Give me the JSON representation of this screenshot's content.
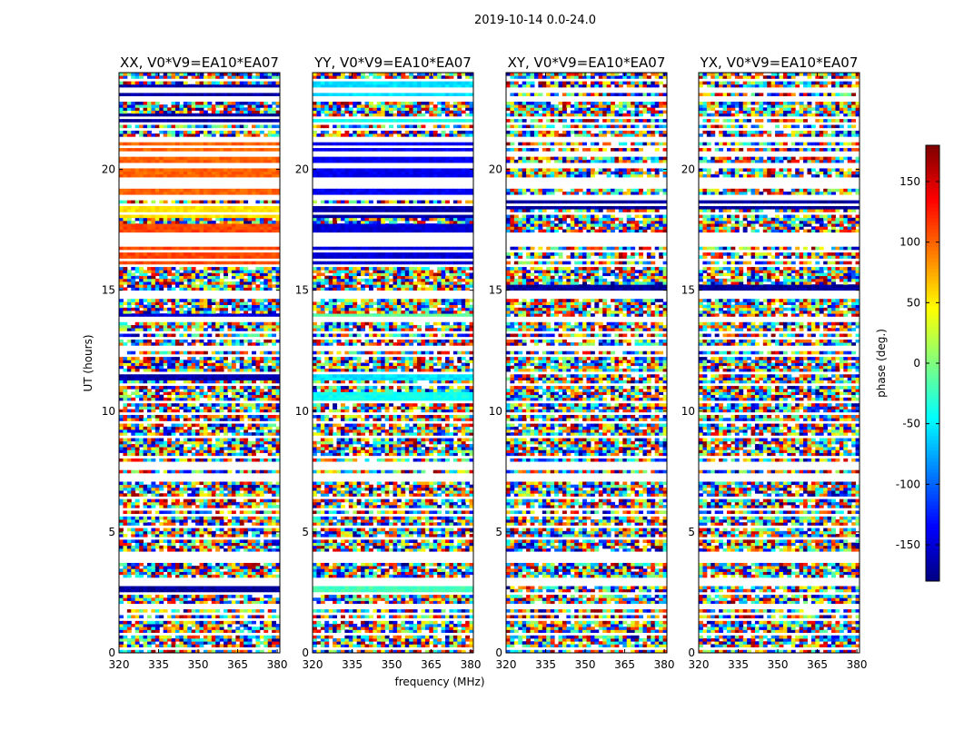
{
  "chart_data": {
    "type": "heatmap",
    "suptitle": "2019-10-14 0.0-24.0",
    "xlabel": "frequency (MHz)",
    "ylabel": "UT (hours)",
    "xlim": [
      320,
      381
    ],
    "ylim": [
      0,
      24
    ],
    "xticks": [
      320,
      335,
      350,
      365,
      380
    ],
    "yticks": [
      0,
      5,
      10,
      15,
      20
    ],
    "colorbar": {
      "label": "phase (deg.)",
      "range": [
        -180,
        180
      ],
      "ticks": [
        -150,
        -100,
        -50,
        0,
        50,
        100,
        150
      ],
      "colormap": [
        "#00007f",
        "#0000ff",
        "#007fff",
        "#00ffff",
        "#7fff7f",
        "#ffff00",
        "#ff7f00",
        "#ff0000",
        "#7f0000"
      ]
    },
    "panels": [
      {
        "title": "XX, V0*V9=EA10*EA07",
        "bands": [
          {
            "y": [
              23.1,
              23.5
            ],
            "phase": -165
          },
          {
            "y": [
              22.0,
              22.3
            ],
            "phase": -170
          },
          {
            "y": [
              19.0,
              21.2
            ],
            "phase": 100
          },
          {
            "y": [
              18.0,
              18.5
            ],
            "phase": 55
          },
          {
            "y": [
              16.0,
              17.8
            ],
            "phase": 110
          },
          {
            "y": [
              13.7,
              14.0
            ],
            "phase": -150
          },
          {
            "y": [
              11.3,
              11.6
            ],
            "phase": -165
          },
          {
            "y": [
              2.4,
              2.7
            ],
            "phase": -170
          }
        ]
      },
      {
        "title": "YY, V0*V9=EA10*EA07",
        "bands": [
          {
            "y": [
              23.1,
              23.6
            ],
            "phase": -55
          },
          {
            "y": [
              21.8,
              22.1
            ],
            "phase": -35
          },
          {
            "y": [
              19.0,
              21.2
            ],
            "phase": -140
          },
          {
            "y": [
              18.0,
              18.5
            ],
            "phase": -165
          },
          {
            "y": [
              16.0,
              17.8
            ],
            "phase": -150
          },
          {
            "y": [
              13.7,
              14.0
            ],
            "phase": -10
          },
          {
            "y": [
              11.3,
              11.6
            ],
            "phase": -55
          },
          {
            "y": [
              10.5,
              10.8
            ],
            "phase": -40
          },
          {
            "y": [
              2.4,
              2.7
            ],
            "phase": -20
          }
        ]
      },
      {
        "title": "XY, V0*V9=EA10*EA07",
        "bands": [
          {
            "y": [
              18.4,
              18.7
            ],
            "phase": -170
          },
          {
            "y": [
              15.0,
              15.2
            ],
            "phase": -170
          }
        ]
      },
      {
        "title": "YX, V0*V9=EA10*EA07",
        "bands": [
          {
            "y": [
              18.4,
              18.7
            ],
            "phase": -170
          },
          {
            "y": [
              15.0,
              15.2
            ],
            "phase": -170
          }
        ]
      }
    ]
  }
}
